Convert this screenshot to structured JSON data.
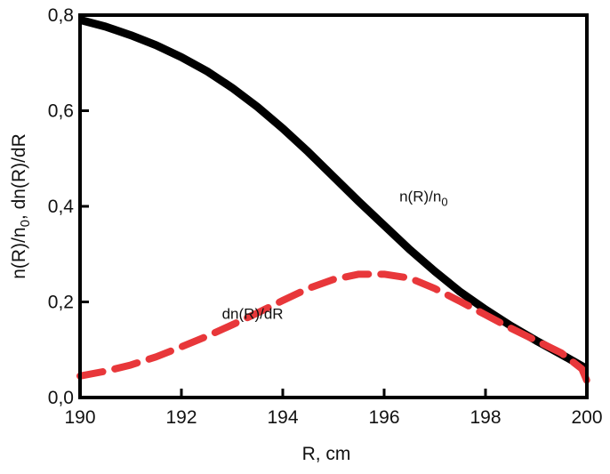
{
  "chart_data": {
    "type": "line",
    "xlabel": "R, cm",
    "ylabel": {
      "a": "n(R)/n",
      "a_sub": "0",
      "b": ", dn(R)/dR"
    },
    "xlim": [
      190,
      200
    ],
    "ylim": [
      0,
      0.8
    ],
    "x_ticks": [
      190,
      192,
      194,
      196,
      198,
      200
    ],
    "y_ticks": [
      0.0,
      0.2,
      0.4,
      0.6,
      0.8
    ],
    "x_tick_labels": [
      "190",
      "192",
      "194",
      "196",
      "198",
      "200"
    ],
    "y_tick_labels": [
      "0,0",
      "0,2",
      "0,4",
      "0,6",
      "0,8"
    ],
    "grid": false,
    "series": [
      {
        "name": "n(R)/n0",
        "color": "#000000",
        "style": "solid",
        "x": [
          190,
          190.5,
          191,
          191.5,
          192,
          192.5,
          193,
          193.5,
          194,
          194.5,
          195,
          195.5,
          196,
          196.5,
          197,
          197.5,
          198,
          198.5,
          199,
          199.5,
          200
        ],
        "y": [
          0.79,
          0.776,
          0.758,
          0.737,
          0.712,
          0.683,
          0.648,
          0.608,
          0.563,
          0.514,
          0.462,
          0.41,
          0.36,
          0.31,
          0.264,
          0.221,
          0.184,
          0.15,
          0.119,
          0.09,
          0.06
        ]
      },
      {
        "name": "dn(R)/dR",
        "color": "#e8373a",
        "style": "dashed",
        "x": [
          190,
          190.5,
          191,
          191.5,
          192,
          192.5,
          193,
          193.5,
          194,
          194.5,
          195,
          195.5,
          196,
          196.5,
          197,
          197.5,
          198,
          198.5,
          199,
          199.5,
          199.9,
          200
        ],
        "y": [
          0.045,
          0.055,
          0.068,
          0.085,
          0.106,
          0.128,
          0.152,
          0.177,
          0.203,
          0.228,
          0.247,
          0.258,
          0.258,
          0.25,
          0.228,
          0.201,
          0.173,
          0.145,
          0.119,
          0.093,
          0.06,
          0.035
        ]
      }
    ],
    "annotations": [
      {
        "text": "n(R)/n",
        "sub": "0",
        "x": 196.3,
        "y": 0.41
      },
      {
        "text": "dn(R)/dR",
        "x": 192.8,
        "y": 0.165
      }
    ]
  }
}
